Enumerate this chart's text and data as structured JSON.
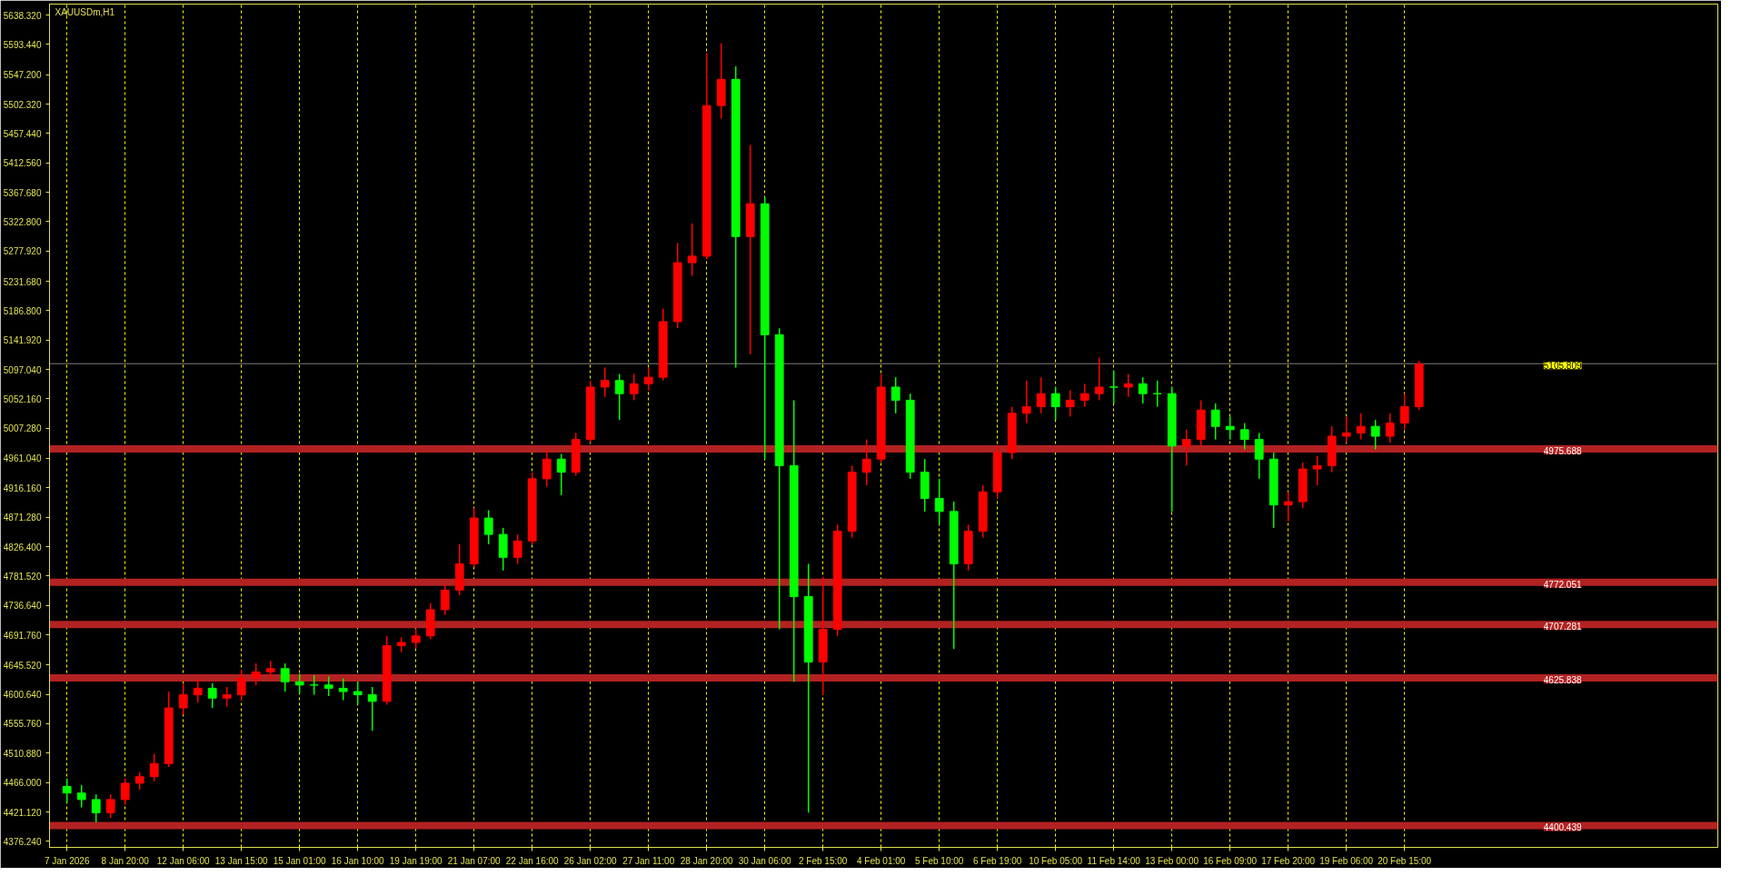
{
  "chart_data": {
    "type": "candlestick",
    "title": "XAUUSDm,H1",
    "categories": [
      "7 Jan 2026",
      null,
      null,
      null,
      "8 Jan 20:00",
      null,
      null,
      null,
      "12 Jan 06:00",
      null,
      null,
      null,
      "13 Jan 15:00",
      null,
      null,
      null,
      "15 Jan 01:00",
      null,
      null,
      null,
      "16 Jan 10:00",
      null,
      null,
      null,
      "19 Jan 19:00",
      null,
      null,
      null,
      "21 Jan 07:00",
      null,
      null,
      null,
      "22 Jan 16:00",
      null,
      null,
      null,
      "26 Jan 02:00",
      null,
      null,
      null,
      "27 Jan 11:00",
      null,
      null,
      null,
      "28 Jan 20:00",
      null,
      null,
      null,
      "30 Jan 06:00",
      null,
      null,
      null,
      "2 Feb 15:00",
      null,
      null,
      null,
      "4 Feb 01:00",
      null,
      null,
      null,
      "5 Feb 10:00",
      null,
      null,
      null,
      "6 Feb 19:00",
      null,
      null,
      null,
      "10 Feb 05:00",
      null,
      null,
      null,
      "11 Feb 14:00",
      null,
      null,
      null,
      "13 Feb 00:00",
      null,
      null,
      null,
      "16 Feb 09:00",
      null,
      null,
      null,
      "17 Feb 20:00",
      null,
      null,
      null,
      "19 Feb 06:00",
      null,
      null,
      null,
      "20 Feb 15:00",
      null
    ],
    "ohlc": [
      [
        4460,
        4472,
        4435,
        4450
      ],
      [
        4450,
        4462,
        4428,
        4440
      ],
      [
        4440,
        4448,
        4405,
        4420
      ],
      [
        4420,
        4448,
        4412,
        4440
      ],
      [
        4440,
        4472,
        4432,
        4465
      ],
      [
        4465,
        4482,
        4455,
        4475
      ],
      [
        4475,
        4510,
        4468,
        4495
      ],
      [
        4495,
        4605,
        4490,
        4580
      ],
      [
        4580,
        4618,
        4570,
        4600
      ],
      [
        4600,
        4625,
        4588,
        4610
      ],
      [
        4610,
        4618,
        4580,
        4595
      ],
      [
        4595,
        4612,
        4582,
        4600
      ],
      [
        4600,
        4638,
        4592,
        4625
      ],
      [
        4625,
        4648,
        4615,
        4635
      ],
      [
        4635,
        4652,
        4625,
        4640
      ],
      [
        4640,
        4648,
        4605,
        4620
      ],
      [
        4620,
        4632,
        4602,
        4615
      ],
      [
        4615,
        4630,
        4600,
        4615
      ],
      [
        4615,
        4628,
        4598,
        4610
      ],
      [
        4610,
        4625,
        4592,
        4605
      ],
      [
        4605,
        4620,
        4585,
        4600
      ],
      [
        4600,
        4612,
        4545,
        4590
      ],
      [
        4590,
        4690,
        4585,
        4675
      ],
      [
        4675,
        4688,
        4665,
        4680
      ],
      [
        4680,
        4700,
        4672,
        4690
      ],
      [
        4690,
        4740,
        4685,
        4730
      ],
      [
        4730,
        4770,
        4722,
        4760
      ],
      [
        4760,
        4830,
        4752,
        4800
      ],
      [
        4800,
        4885,
        4795,
        4870
      ],
      [
        4870,
        4882,
        4830,
        4845
      ],
      [
        4845,
        4855,
        4790,
        4810
      ],
      [
        4810,
        4845,
        4800,
        4835
      ],
      [
        4835,
        4940,
        4830,
        4930
      ],
      [
        4930,
        4975,
        4918,
        4960
      ],
      [
        4960,
        4968,
        4905,
        4940
      ],
      [
        4940,
        5000,
        4935,
        4990
      ],
      [
        4990,
        5080,
        4985,
        5070
      ],
      [
        5070,
        5100,
        5055,
        5080
      ],
      [
        5080,
        5090,
        5020,
        5060
      ],
      [
        5060,
        5090,
        5050,
        5075
      ],
      [
        5075,
        5100,
        5065,
        5085
      ],
      [
        5085,
        5190,
        5080,
        5170
      ],
      [
        5170,
        5290,
        5160,
        5260
      ],
      [
        5260,
        5320,
        5240,
        5270
      ],
      [
        5270,
        5580,
        5265,
        5500
      ],
      [
        5500,
        5595,
        5480,
        5540
      ],
      [
        5540,
        5560,
        5100,
        5300
      ],
      [
        5300,
        5440,
        5120,
        5350
      ],
      [
        5350,
        5360,
        4960,
        5150
      ],
      [
        5150,
        5160,
        4700,
        4950
      ],
      [
        4950,
        5050,
        4620,
        4750
      ],
      [
        4750,
        4800,
        4420,
        4650
      ],
      [
        4650,
        4780,
        4600,
        4700
      ],
      [
        4700,
        4860,
        4690,
        4850
      ],
      [
        4850,
        4950,
        4840,
        4940
      ],
      [
        4940,
        4990,
        4920,
        4960
      ],
      [
        4960,
        5090,
        4955,
        5070
      ],
      [
        5070,
        5085,
        5030,
        5050
      ],
      [
        5050,
        5060,
        4930,
        4940
      ],
      [
        4940,
        4960,
        4880,
        4900
      ],
      [
        4900,
        4930,
        4860,
        4880
      ],
      [
        4880,
        4895,
        4670,
        4800
      ],
      [
        4800,
        4860,
        4790,
        4850
      ],
      [
        4850,
        4920,
        4840,
        4910
      ],
      [
        4910,
        4980,
        4900,
        4970
      ],
      [
        4970,
        5040,
        4960,
        5030
      ],
      [
        5030,
        5080,
        5015,
        5040
      ],
      [
        5040,
        5085,
        5030,
        5060
      ],
      [
        5060,
        5070,
        5020,
        5040
      ],
      [
        5040,
        5065,
        5025,
        5050
      ],
      [
        5050,
        5075,
        5040,
        5060
      ],
      [
        5060,
        5115,
        5050,
        5070
      ],
      [
        5070,
        5095,
        5045,
        5070
      ],
      [
        5070,
        5090,
        5055,
        5075
      ],
      [
        5075,
        5085,
        5045,
        5060
      ],
      [
        5060,
        5080,
        5040,
        5060
      ],
      [
        5060,
        5070,
        4880,
        4980
      ],
      [
        4980,
        5005,
        4950,
        4990
      ],
      [
        4990,
        5050,
        4980,
        5035
      ],
      [
        5035,
        5045,
        4990,
        5010
      ],
      [
        5010,
        5025,
        4990,
        5005
      ],
      [
        5005,
        5015,
        4975,
        4990
      ],
      [
        4990,
        5000,
        4930,
        4960
      ],
      [
        4960,
        4970,
        4855,
        4890
      ],
      [
        4890,
        4910,
        4865,
        4895
      ],
      [
        4895,
        4955,
        4885,
        4945
      ],
      [
        4945,
        4965,
        4920,
        4950
      ],
      [
        4950,
        5010,
        4940,
        4995
      ],
      [
        4995,
        5025,
        4985,
        5000
      ],
      [
        5000,
        5030,
        4990,
        5010
      ],
      [
        5010,
        5020,
        4975,
        4995
      ],
      [
        4995,
        5030,
        4985,
        5015
      ],
      [
        5015,
        5060,
        5005,
        5040
      ],
      [
        5040,
        5110,
        5035,
        5105
      ]
    ],
    "colors": [
      "#00ff00",
      "#00ff00",
      "#00ff00",
      "#ff0000",
      "#ff0000",
      "#ff0000",
      "#ff0000",
      "#ff0000",
      "#ff0000",
      "#ff0000",
      "#00ff00",
      "#ff0000",
      "#ff0000",
      "#ff0000",
      "#ff0000",
      "#00ff00",
      "#00ff00",
      "#00ff00",
      "#00ff00",
      "#00ff00",
      "#00ff00",
      "#00ff00",
      "#ff0000",
      "#ff0000",
      "#ff0000",
      "#ff0000",
      "#ff0000",
      "#ff0000",
      "#ff0000",
      "#00ff00",
      "#00ff00",
      "#ff0000",
      "#ff0000",
      "#ff0000",
      "#00ff00",
      "#ff0000",
      "#ff0000",
      "#ff0000",
      "#00ff00",
      "#ff0000",
      "#ff0000",
      "#ff0000",
      "#ff0000",
      "#ff0000",
      "#ff0000",
      "#ff0000",
      "#00ff00",
      "#ff0000",
      "#00ff00",
      "#00ff00",
      "#00ff00",
      "#00ff00",
      "#ff0000",
      "#ff0000",
      "#ff0000",
      "#ff0000",
      "#ff0000",
      "#00ff00",
      "#00ff00",
      "#00ff00",
      "#00ff00",
      "#00ff00",
      "#ff0000",
      "#ff0000",
      "#ff0000",
      "#ff0000",
      "#ff0000",
      "#ff0000",
      "#00ff00",
      "#ff0000",
      "#ff0000",
      "#ff0000",
      "#00ff00",
      "#ff0000",
      "#00ff00",
      "#00ff00",
      "#00ff00",
      "#ff0000",
      "#ff0000",
      "#00ff00",
      "#00ff00",
      "#00ff00",
      "#00ff00",
      "#00ff00",
      "#ff0000",
      "#ff0000",
      "#ff0000",
      "#ff0000",
      "#ff0000",
      "#ff0000",
      "#00ff00",
      "#ff0000",
      "#ff0000",
      "#ff0000"
    ],
    "ylim": [
      4367,
      5655
    ],
    "yticks": [
      {
        "value": 4376.24,
        "label": "4376.240"
      },
      {
        "value": 4421.12,
        "label": "4421.120"
      },
      {
        "value": 4466,
        "label": "4466.000"
      },
      {
        "value": 4510.88,
        "label": "4510.880"
      },
      {
        "value": 4555.76,
        "label": "4555.760"
      },
      {
        "value": 4600.64,
        "label": "4600.640"
      },
      {
        "value": 4645.52,
        "label": "4645.520"
      },
      {
        "value": 4691.76,
        "label": "4691.760"
      },
      {
        "value": 4736.64,
        "label": "4736.640"
      },
      {
        "value": 4781.52,
        "label": "4781.520"
      },
      {
        "value": 4826.4,
        "label": "4826.400"
      },
      {
        "value": 4871.28,
        "label": "4871.280"
      },
      {
        "value": 4916.16,
        "label": "4916.160"
      },
      {
        "value": 4961.04,
        "label": "4961.040"
      },
      {
        "value": 5007.28,
        "label": "5007.280"
      },
      {
        "value": 5052.16,
        "label": "5052.160"
      },
      {
        "value": 5097.04,
        "label": "5097.040"
      },
      {
        "value": 5141.92,
        "label": "5141.920"
      },
      {
        "value": 5186.8,
        "label": "5186.800"
      },
      {
        "value": 5231.68,
        "label": "5231.680"
      },
      {
        "value": 5277.92,
        "label": "5277.920"
      },
      {
        "value": 5322.8,
        "label": "5322.800"
      },
      {
        "value": 5367.68,
        "label": "5367.680"
      },
      {
        "value": 5412.56,
        "label": "5412.560"
      },
      {
        "value": 5457.44,
        "label": "5457.440"
      },
      {
        "value": 5502.32,
        "label": "5502.320"
      },
      {
        "value": 5547.2,
        "label": "5547.200"
      },
      {
        "value": 5593.44,
        "label": "5593.440"
      },
      {
        "value": 5638.32,
        "label": "5638.320"
      }
    ],
    "ref_lines": [
      {
        "axis": "y",
        "value": 4975.688,
        "label": "4975.688",
        "color": "#b22222"
      },
      {
        "axis": "y",
        "value": 4772.051,
        "label": "4772.051",
        "color": "#b22222"
      },
      {
        "axis": "y",
        "value": 4707.281,
        "label": "4707.281",
        "color": "#b22222"
      },
      {
        "axis": "y",
        "value": 4625.838,
        "label": "4625.838",
        "color": "#b22222"
      },
      {
        "axis": "y",
        "value": 4400.439,
        "label": "4400.439",
        "color": "#b22222"
      },
      {
        "axis": "y",
        "value": 5105.809,
        "label": "5105.809",
        "color": "#808080",
        "line_style": "solid"
      }
    ],
    "grid": "x"
  }
}
